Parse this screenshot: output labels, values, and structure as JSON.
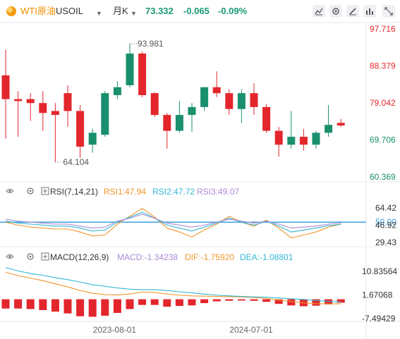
{
  "header": {
    "symbol_name": "WTI原油",
    "symbol_code": "USOIL",
    "period": "月K",
    "price": "73.332",
    "change": "-0.065",
    "change_pct": "-0.09%",
    "toolbar_icons": [
      "line-chart-icon",
      "settings-icon",
      "draw-icon",
      "indicator-icon",
      "fullscreen-icon"
    ]
  },
  "colors": {
    "up": "#1a8f6e",
    "down": "#e3262c",
    "price_text": "#1a9b76",
    "accent": "#f08c00"
  },
  "chart_data": [
    {
      "type": "candlestick",
      "title": "",
      "y_ticks": [
        97.716,
        88.379,
        79.042,
        69.706,
        60.369
      ],
      "ylim": [
        60.369,
        97.716
      ],
      "annotations": [
        {
          "label": "93.981",
          "type": "high",
          "index": 10
        },
        {
          "label": "64.104",
          "type": "low",
          "index": 4
        }
      ],
      "candles": [
        {
          "o": 86.0,
          "h": 92.5,
          "l": 70.0,
          "c": 80.0
        },
        {
          "o": 80.0,
          "h": 82.0,
          "l": 70.5,
          "c": 79.5
        },
        {
          "o": 80.0,
          "h": 81.5,
          "l": 74.5,
          "c": 79.0
        },
        {
          "o": 79.0,
          "h": 82.0,
          "l": 72.0,
          "c": 76.5
        },
        {
          "o": 77.0,
          "h": 79.0,
          "l": 64.1,
          "c": 76.0
        },
        {
          "o": 81.5,
          "h": 83.5,
          "l": 73.0,
          "c": 77.0
        },
        {
          "o": 77.0,
          "h": 78.5,
          "l": 65.2,
          "c": 68.0
        },
        {
          "o": 68.5,
          "h": 72.5,
          "l": 66.5,
          "c": 71.5
        },
        {
          "o": 71.0,
          "h": 82.0,
          "l": 70.5,
          "c": 81.5
        },
        {
          "o": 81.0,
          "h": 84.5,
          "l": 80.0,
          "c": 83.0
        },
        {
          "o": 83.5,
          "h": 93.981,
          "l": 83.0,
          "c": 91.5
        },
        {
          "o": 91.5,
          "h": 92.0,
          "l": 80.5,
          "c": 81.0
        },
        {
          "o": 81.5,
          "h": 81.8,
          "l": 75.5,
          "c": 76.0
        },
        {
          "o": 76.0,
          "h": 76.5,
          "l": 67.5,
          "c": 72.0
        },
        {
          "o": 72.0,
          "h": 79.5,
          "l": 71.5,
          "c": 76.0
        },
        {
          "o": 76.0,
          "h": 79.0,
          "l": 71.8,
          "c": 78.0
        },
        {
          "o": 78.0,
          "h": 83.0,
          "l": 77.0,
          "c": 83.0
        },
        {
          "o": 83.0,
          "h": 87.0,
          "l": 80.5,
          "c": 81.5
        },
        {
          "o": 81.5,
          "h": 82.5,
          "l": 76.0,
          "c": 77.5
        },
        {
          "o": 77.5,
          "h": 82.5,
          "l": 74.0,
          "c": 81.5
        },
        {
          "o": 81.5,
          "h": 84.0,
          "l": 76.0,
          "c": 78.0
        },
        {
          "o": 78.0,
          "h": 78.8,
          "l": 71.5,
          "c": 72.0
        },
        {
          "o": 72.0,
          "h": 73.0,
          "l": 65.5,
          "c": 68.5
        },
        {
          "o": 68.5,
          "h": 77.0,
          "l": 67.5,
          "c": 70.5
        },
        {
          "o": 70.5,
          "h": 72.5,
          "l": 67.0,
          "c": 68.5
        },
        {
          "o": 68.5,
          "h": 72.0,
          "l": 67.5,
          "c": 71.5
        },
        {
          "o": 71.5,
          "h": 78.5,
          "l": 70.5,
          "c": 73.5
        },
        {
          "o": 74.0,
          "h": 75.0,
          "l": 73.0,
          "c": 73.332
        }
      ]
    },
    {
      "type": "line",
      "title": "RSI(7,14,21)",
      "ylim": [
        29.43,
        64.42
      ],
      "y_ticks": [
        64.42,
        50.0,
        46.92,
        29.43
      ],
      "reference_line": 50.0,
      "legend": [
        {
          "label": "RSI1:47.94",
          "color": "#f0962b"
        },
        {
          "label": "RSI2:47.72",
          "color": "#33b6d1"
        },
        {
          "label": "RSI3:49.07",
          "color": "#a98ad6"
        }
      ],
      "series": [
        {
          "name": "RSI1",
          "color": "#f0962b",
          "values": [
            50,
            47,
            45,
            44,
            43,
            43,
            40,
            36,
            37,
            48,
            56,
            64,
            55,
            44,
            40,
            35,
            42,
            48,
            56,
            50,
            46,
            52,
            44,
            34,
            37,
            40,
            45,
            47.94
          ]
        },
        {
          "name": "RSI2",
          "color": "#33b6d1",
          "values": [
            51,
            49,
            48,
            47,
            46,
            46,
            44,
            41,
            42,
            50,
            55,
            60,
            54,
            47,
            44,
            41,
            45,
            49,
            54,
            50,
            47,
            51,
            46,
            40,
            42,
            44,
            46.5,
            47.72
          ]
        },
        {
          "name": "RSI3",
          "color": "#a98ad6",
          "values": [
            53,
            51,
            50,
            49,
            48,
            48,
            46,
            44,
            45,
            51,
            54,
            58,
            54,
            49,
            47,
            45,
            47,
            50,
            53,
            51,
            49,
            51,
            48,
            44,
            45,
            46,
            48,
            49.07
          ]
        }
      ]
    },
    {
      "type": "bar+line",
      "title": "MACD(12,26,9)",
      "ylim": [
        -7.49429,
        10.83564
      ],
      "y_ticks": [
        10.83564,
        1.67068,
        -7.49429
      ],
      "x_tick_labels": [
        "2023-08-01",
        "2024-07-01"
      ],
      "legend": [
        {
          "label": "MACD:-1.34238",
          "color": "#a98ad6"
        },
        {
          "label": "DIF:-1.75920",
          "color": "#f0962b"
        },
        {
          "label": "DEA:-1.08801",
          "color": "#33b6d1"
        }
      ],
      "macd_bars": [
        -3.6,
        -3.6,
        -3.8,
        -4.2,
        -4.8,
        -5.5,
        -6.6,
        -6.8,
        -6.4,
        -5.3,
        -3.8,
        -2.2,
        -2.2,
        -2.9,
        -2.6,
        -2.4,
        -1.5,
        -0.8,
        -0.6,
        -0.5,
        -0.6,
        -1.0,
        -1.8,
        -2.4,
        -2.7,
        -2.5,
        -2.0,
        -1.34238
      ],
      "series": [
        {
          "name": "DIF",
          "color": "#f0962b",
          "values": [
            10.5,
            9.2,
            8.2,
            7.2,
            6.0,
            4.8,
            3.4,
            2.3,
            1.8,
            1.7,
            2.0,
            2.8,
            2.6,
            2.0,
            1.6,
            1.3,
            1.2,
            1.1,
            1.0,
            0.9,
            0.7,
            0.3,
            -0.3,
            -0.9,
            -1.4,
            -1.7,
            -1.75,
            -1.7592
          ]
        },
        {
          "name": "DEA",
          "color": "#33b6d1",
          "values": [
            12.3,
            11.0,
            10.0,
            9.3,
            8.4,
            7.6,
            6.7,
            5.7,
            5.0,
            4.4,
            3.9,
            3.7,
            3.7,
            3.4,
            2.9,
            2.5,
            2.0,
            1.6,
            1.3,
            1.1,
            0.9,
            0.8,
            0.5,
            0.2,
            -0.1,
            -0.5,
            -0.8,
            -1.08801
          ]
        }
      ]
    }
  ]
}
